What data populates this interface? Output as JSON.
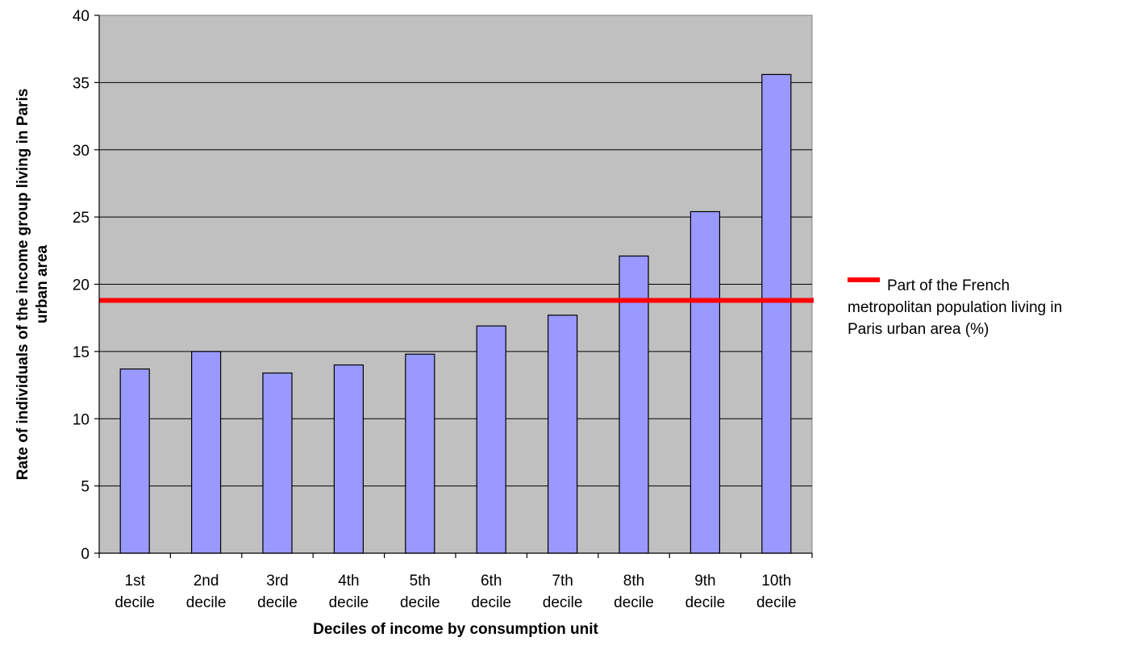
{
  "chart_data": {
    "type": "bar",
    "categories": [
      [
        "1st",
        "decile"
      ],
      [
        "2nd",
        "decile"
      ],
      [
        "3rd",
        "decile"
      ],
      [
        "4th",
        "decile"
      ],
      [
        "5th",
        "decile"
      ],
      [
        "6th",
        "decile"
      ],
      [
        "7th",
        "decile"
      ],
      [
        "8th",
        "decile"
      ],
      [
        "9th",
        "decile"
      ],
      [
        "10th",
        "decile"
      ]
    ],
    "values": [
      13.7,
      15.0,
      13.4,
      14.0,
      14.8,
      16.9,
      17.7,
      22.1,
      25.4,
      35.6
    ],
    "reference_line": {
      "value": 18.8,
      "label": [
        "Part of the French",
        "metropolitan population living in",
        "Paris urban area (%)"
      ],
      "color": "#ff0000"
    },
    "xlabel": "Deciles of income by consumption unit",
    "ylabel": [
      "Rate of individuals of the income group living in Paris",
      "urban area"
    ],
    "ylim": [
      0,
      40
    ],
    "yticks": [
      0,
      5,
      10,
      15,
      20,
      25,
      30,
      35,
      40
    ],
    "grid": true,
    "legend_position": "right",
    "colors": {
      "bar_fill": "#9999ff",
      "plot_background": "#c0c0c0",
      "gridline": "#000000"
    }
  }
}
